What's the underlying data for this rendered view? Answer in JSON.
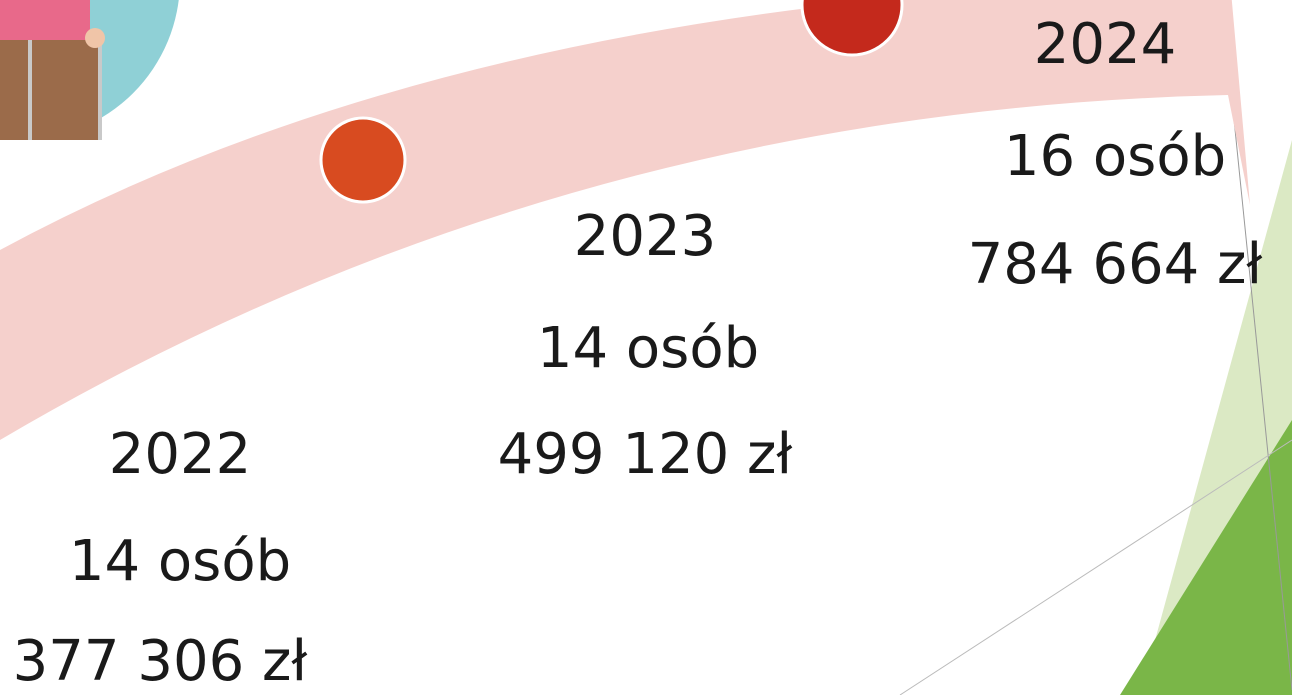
{
  "timeline": [
    {
      "year": "2022",
      "people": "14 osób",
      "amount": "377 306 zł"
    },
    {
      "year": "2023",
      "people": "14 osób",
      "amount": "499 120 zł"
    },
    {
      "year": "2024",
      "people": "16 osób",
      "amount": "784 664 zł"
    }
  ]
}
